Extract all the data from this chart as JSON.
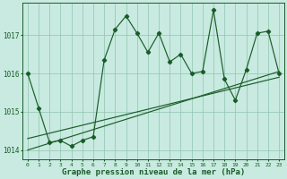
{
  "title": "Graphe pression niveau de la mer (hPa)",
  "bg_color": "#c8eae0",
  "grid_color": "#90c4b0",
  "line_color": "#1a5c2a",
  "x_values": [
    0,
    1,
    2,
    3,
    4,
    5,
    6,
    7,
    8,
    9,
    10,
    11,
    12,
    13,
    14,
    15,
    16,
    17,
    18,
    19,
    20,
    21,
    22,
    23
  ],
  "y_main": [
    1016.0,
    1015.1,
    1014.2,
    1014.25,
    1014.1,
    1014.25,
    1014.35,
    1016.35,
    1017.15,
    1017.5,
    1017.05,
    1016.55,
    1017.05,
    1016.3,
    1016.5,
    1016.0,
    1016.05,
    1017.65,
    1015.85,
    1015.3,
    1016.1,
    1017.05,
    1017.1,
    1016.0
  ],
  "ylim_low": 1013.75,
  "ylim_high": 1017.85,
  "yticks": [
    1014,
    1015,
    1016,
    1017
  ],
  "trend1": {
    "x": [
      0,
      23
    ],
    "y": [
      1014.0,
      1016.05
    ]
  },
  "trend2": {
    "x": [
      0,
      23
    ],
    "y": [
      1014.3,
      1015.9
    ]
  },
  "xlabel_size": 6.5,
  "tick_label_size": 5.5,
  "xtick_label_size": 4.5
}
